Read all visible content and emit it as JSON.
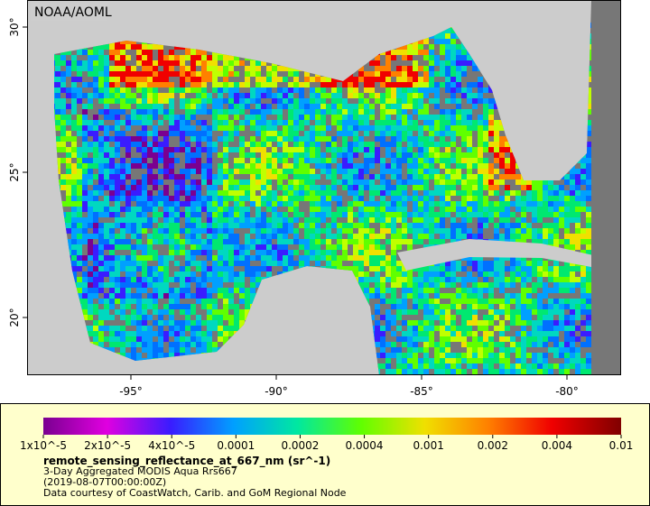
{
  "map": {
    "badge": "NOAA/AOML",
    "lon_ticks": [
      {
        "value": -95,
        "label": "-95°"
      },
      {
        "value": -90,
        "label": "-90°"
      },
      {
        "value": -85,
        "label": "-85°"
      },
      {
        "value": -80,
        "label": "-80°"
      }
    ],
    "lat_ticks": [
      {
        "value": 30,
        "label": "30°"
      },
      {
        "value": 25,
        "label": "25°"
      },
      {
        "value": 20,
        "label": "20°"
      }
    ]
  },
  "legend": {
    "ticks": [
      "1x10^-5",
      "2x10^-5",
      "4x10^-5",
      "0.0001",
      "0.0002",
      "0.0004",
      "0.001",
      "0.002",
      "0.004",
      "0.01"
    ],
    "variable": "remote_sensing_reflectance_at_667_nm (sr^-1)",
    "lines": [
      "3-Day Aggregated MODIS Aqua Rrs667",
      "(2019-08-07T00:00:00Z)",
      "Data courtesy of CoastWatch, Carib. and GoM Regional Node"
    ]
  }
}
